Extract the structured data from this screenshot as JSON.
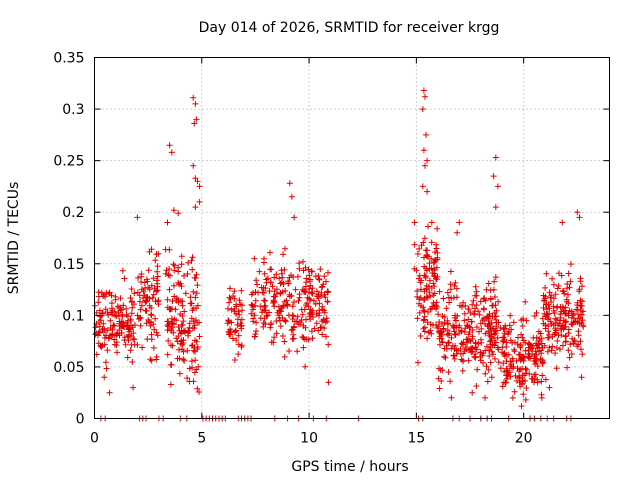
{
  "chart_data": {
    "type": "scatter",
    "title": "Day 014 of 2026, SRMTID for receiver krgg",
    "xlabel": "GPS time / hours",
    "ylabel": "SRMTID / TECUs",
    "xlim": [
      0,
      24
    ],
    "ylim": [
      0,
      0.35
    ],
    "x_ticks": [
      0,
      5,
      10,
      15,
      20
    ],
    "x_tick_labels": [
      "0",
      "5",
      "10",
      "15",
      "20"
    ],
    "y_ticks": [
      0,
      0.05,
      0.1,
      0.15,
      0.2,
      0.25,
      0.3,
      0.35
    ],
    "y_tick_labels": [
      "0",
      "0.05",
      "0.1",
      "0.15",
      "0.2",
      "0.25",
      "0.3",
      "0.35"
    ],
    "grid": true,
    "marker": "+",
    "series_color": "#e00000",
    "series": [
      {
        "name": "SRMTID",
        "clusters": [
          {
            "x_range": [
              0.0,
              1.9
            ],
            "center": 0.095,
            "spread": 0.025,
            "count": 150
          },
          {
            "x_range": [
              2.0,
              3.0
            ],
            "center": 0.11,
            "spread": 0.035,
            "count": 80
          },
          {
            "x_range": [
              3.3,
              4.9
            ],
            "center": 0.1,
            "spread": 0.045,
            "count": 150
          },
          {
            "x_range": [
              6.2,
              6.9
            ],
            "center": 0.095,
            "spread": 0.02,
            "count": 50
          },
          {
            "x_range": [
              7.3,
              10.9
            ],
            "center": 0.11,
            "spread": 0.03,
            "count": 260
          },
          {
            "x_range": [
              14.9,
              16.0
            ],
            "center": 0.13,
            "spread": 0.04,
            "count": 110
          },
          {
            "x_range": [
              16.0,
              18.9
            ],
            "center": 0.085,
            "spread": 0.03,
            "count": 260
          },
          {
            "x_range": [
              18.9,
              20.9
            ],
            "center": 0.06,
            "spread": 0.025,
            "count": 170
          },
          {
            "x_range": [
              20.9,
              22.8
            ],
            "center": 0.1,
            "spread": 0.028,
            "count": 170
          }
        ],
        "points": [
          [
            4.6,
            0.311
          ],
          [
            4.7,
            0.305
          ],
          [
            4.75,
            0.29
          ],
          [
            4.65,
            0.286
          ],
          [
            3.5,
            0.265
          ],
          [
            3.6,
            0.258
          ],
          [
            4.6,
            0.245
          ],
          [
            4.7,
            0.233
          ],
          [
            4.8,
            0.23
          ],
          [
            4.9,
            0.225
          ],
          [
            3.7,
            0.202
          ],
          [
            3.9,
            0.199
          ],
          [
            4.9,
            0.21
          ],
          [
            4.7,
            0.205
          ],
          [
            15.35,
            0.318
          ],
          [
            15.4,
            0.312
          ],
          [
            15.3,
            0.3
          ],
          [
            15.45,
            0.275
          ],
          [
            15.35,
            0.26
          ],
          [
            15.5,
            0.25
          ],
          [
            15.4,
            0.245
          ],
          [
            15.3,
            0.225
          ],
          [
            15.5,
            0.22
          ],
          [
            18.7,
            0.253
          ],
          [
            18.6,
            0.235
          ],
          [
            18.8,
            0.225
          ],
          [
            18.7,
            0.205
          ],
          [
            9.1,
            0.228
          ],
          [
            9.2,
            0.215
          ],
          [
            9.3,
            0.195
          ],
          [
            2.0,
            0.195
          ],
          [
            3.4,
            0.19
          ],
          [
            22.5,
            0.2
          ],
          [
            22.6,
            0.195
          ],
          [
            21.8,
            0.19
          ],
          [
            17.0,
            0.19
          ],
          [
            16.9,
            0.18
          ],
          [
            19.9,
            0.012
          ],
          [
            20.1,
            0.018
          ],
          [
            19.5,
            0.02
          ],
          [
            0.7,
            0.025
          ],
          [
            1.8,
            0.03
          ],
          [
            0.45,
            0.04
          ],
          [
            10.9,
            0.035
          ],
          [
            17.6,
            0.025
          ],
          [
            18.2,
            0.02
          ],
          [
            21.2,
            0.03
          ],
          [
            22.7,
            0.04
          ]
        ],
        "zero_marks_x": [
          0.3,
          0.5,
          2.1,
          2.25,
          2.4,
          3.0,
          3.2,
          4.0,
          4.3,
          5.05,
          5.2,
          5.35,
          5.5,
          5.65,
          5.8,
          5.95,
          6.1,
          6.7,
          6.85,
          7.0,
          7.15,
          7.3,
          8.4,
          9.0,
          9.5,
          10.2,
          10.8,
          12.3,
          15.1,
          15.3,
          16.7,
          17.0,
          17.5,
          18.0,
          18.3,
          18.5,
          19.3,
          20.3,
          20.5,
          20.8,
          21.1,
          21.4,
          22.0,
          22.2
        ]
      }
    ]
  }
}
